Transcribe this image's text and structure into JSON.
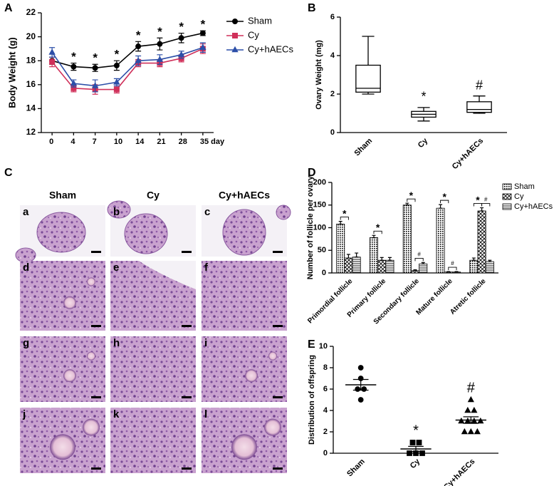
{
  "chart_data": [
    {
      "type": "line",
      "panel_label": "A",
      "ylabel": "Body Weight (g)",
      "categories": [
        "0",
        "4",
        "7",
        "10",
        "14",
        "21",
        "28",
        "35 day"
      ],
      "ylim": [
        12,
        22
      ],
      "yticks": [
        12,
        14,
        16,
        18,
        20,
        22
      ],
      "series": [
        {
          "name": "Sham",
          "color": "#000000",
          "marker": "circle",
          "values": [
            18.0,
            17.5,
            17.4,
            17.6,
            19.2,
            19.4,
            19.9,
            20.3
          ],
          "errors": [
            0.3,
            0.3,
            0.3,
            0.4,
            0.4,
            0.5,
            0.4,
            0.2
          ]
        },
        {
          "name": "Cy",
          "color": "#d0305a",
          "marker": "square",
          "values": [
            17.9,
            15.7,
            15.6,
            15.6,
            17.8,
            17.8,
            18.2,
            19.0
          ],
          "errors": [
            0.4,
            0.3,
            0.4,
            0.3,
            0.3,
            0.3,
            0.3,
            0.4
          ]
        },
        {
          "name": "Cy+hAECs",
          "color": "#2c4fa8",
          "marker": "triangle",
          "values": [
            18.7,
            16.1,
            15.9,
            16.2,
            18.0,
            18.1,
            18.5,
            19.1
          ],
          "errors": [
            0.4,
            0.3,
            0.5,
            0.3,
            0.4,
            0.4,
            0.3,
            0.4
          ]
        }
      ],
      "annotations": [
        {
          "at": 1,
          "text": "*"
        },
        {
          "at": 2,
          "text": "*"
        },
        {
          "at": 3,
          "text": "*"
        },
        {
          "at": 4,
          "text": "*"
        },
        {
          "at": 5,
          "text": "*"
        },
        {
          "at": 6,
          "text": "*"
        },
        {
          "at": 7,
          "text": "*"
        }
      ]
    },
    {
      "type": "box",
      "panel_label": "B",
      "ylabel": "Ovary Weight (mg)",
      "categories": [
        "Sham",
        "Cy",
        "Cy+hAECs"
      ],
      "ylim": [
        0,
        6
      ],
      "yticks": [
        0,
        2,
        4,
        6
      ],
      "boxes": [
        {
          "min": 2.0,
          "q1": 2.1,
          "median": 2.3,
          "q3": 3.5,
          "max": 5.0
        },
        {
          "min": 0.6,
          "q1": 0.8,
          "median": 0.95,
          "q3": 1.1,
          "max": 1.3
        },
        {
          "min": 1.0,
          "q1": 1.05,
          "median": 1.2,
          "q3": 1.6,
          "max": 1.9
        }
      ],
      "annotations": [
        {
          "category": 1,
          "text": "*"
        },
        {
          "category": 2,
          "text": "#"
        }
      ]
    },
    {
      "type": "grouped-bar",
      "panel_label": "D",
      "ylabel": "Number of follicle per ovary",
      "categories": [
        "Primordial follicle",
        "Primary follicle",
        "Secondary follicle",
        "Mature follicle",
        "Atretic follicle"
      ],
      "ylim": [
        0,
        200
      ],
      "yticks": [
        0,
        50,
        100,
        150,
        200
      ],
      "series": [
        {
          "name": "Sham",
          "pattern": "dots",
          "values": [
            108,
            78,
            150,
            143,
            28
          ],
          "errors": [
            6,
            5,
            4,
            8,
            5
          ]
        },
        {
          "name": "Cy",
          "pattern": "crosshatch",
          "values": [
            33,
            28,
            5,
            2,
            137
          ],
          "errors": [
            8,
            6,
            2,
            1,
            7
          ]
        },
        {
          "name": "Cy+hAECs",
          "pattern": "horizontal",
          "values": [
            35,
            28,
            20,
            2,
            25
          ],
          "errors": [
            9,
            6,
            3,
            1,
            3
          ]
        }
      ],
      "annotations": [
        {
          "category": 0,
          "from": 0,
          "to": 1,
          "text": "*"
        },
        {
          "category": 1,
          "from": 0,
          "to": 1,
          "text": "*"
        },
        {
          "category": 2,
          "from": 0,
          "to": 1,
          "text": "*"
        },
        {
          "category": 2,
          "from": 1,
          "to": 2,
          "text": "#"
        },
        {
          "category": 3,
          "from": 0,
          "to": 1,
          "text": "*"
        },
        {
          "category": 3,
          "from": 1,
          "to": 2,
          "text": "#"
        },
        {
          "category": 4,
          "from": 0,
          "to": 1,
          "text": "*"
        },
        {
          "category": 4,
          "from": 1,
          "to": 2,
          "text": "#"
        }
      ]
    },
    {
      "type": "dot-plot",
      "panel_label": "E",
      "ylabel": "Distribution of offspring",
      "categories": [
        "Sham",
        "Cy",
        "Cy+hAECs"
      ],
      "ylim": [
        0,
        10
      ],
      "yticks": [
        0,
        2,
        4,
        6,
        8,
        10
      ],
      "markers": [
        "circle",
        "square",
        "triangle"
      ],
      "values": [
        [
          8,
          7,
          6,
          6,
          5
        ],
        [
          1,
          1,
          0,
          0,
          0
        ],
        [
          5,
          4,
          4,
          3,
          3,
          3,
          3,
          2,
          2,
          2
        ]
      ],
      "means": [
        6.4,
        0.4,
        3.1
      ],
      "sems": [
        0.5,
        0.24,
        0.31
      ],
      "annotations": [
        {
          "category": 1,
          "text": "*"
        },
        {
          "category": 2,
          "text": "#"
        }
      ]
    }
  ],
  "histology": {
    "panel_label": "C",
    "columns": [
      "Sham",
      "Cy",
      "Cy+hAECs"
    ],
    "image_labels": [
      "a",
      "b",
      "c",
      "d",
      "e",
      "f",
      "g",
      "h",
      "i",
      "j",
      "k",
      "l"
    ]
  }
}
